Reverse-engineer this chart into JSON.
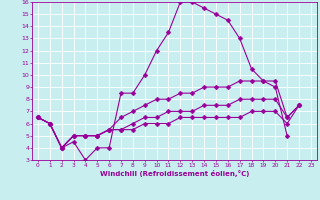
{
  "xlabel": "Windchill (Refroidissement éolien,°C)",
  "bg_color": "#c8eef0",
  "grid_color": "#ffffff",
  "line_color": "#990099",
  "marker": "D",
  "marker_size": 2.5,
  "xlim": [
    -0.5,
    23.5
  ],
  "ylim": [
    3,
    16
  ],
  "xticks": [
    0,
    1,
    2,
    3,
    4,
    5,
    6,
    7,
    8,
    9,
    10,
    11,
    12,
    13,
    14,
    15,
    16,
    17,
    18,
    19,
    20,
    21,
    22,
    23
  ],
  "yticks": [
    3,
    4,
    5,
    6,
    7,
    8,
    9,
    10,
    11,
    12,
    13,
    14,
    15,
    16
  ],
  "line1_x": [
    0,
    1,
    2,
    3,
    4,
    5,
    6,
    7,
    8,
    9,
    10,
    11,
    12,
    13,
    14,
    15,
    16,
    17,
    18,
    19,
    20,
    21,
    22,
    23
  ],
  "line1_y": [
    6.5,
    6.0,
    4.0,
    4.5,
    3.0,
    4.0,
    4.0,
    8.5,
    8.5,
    10.0,
    12.0,
    13.5,
    16.0,
    16.0,
    15.5,
    15.0,
    14.5,
    13.0,
    10.5,
    9.5,
    9.0,
    5.0,
    null,
    null
  ],
  "line2_x": [
    0,
    1,
    2,
    3,
    4,
    5,
    6,
    7,
    8,
    9,
    10,
    11,
    12,
    13,
    14,
    15,
    16,
    17,
    18,
    19,
    20,
    21,
    22,
    23
  ],
  "line2_y": [
    6.5,
    6.0,
    4.0,
    5.0,
    5.0,
    5.0,
    5.5,
    6.5,
    7.0,
    7.5,
    8.0,
    8.0,
    8.5,
    8.5,
    9.0,
    9.0,
    9.0,
    9.5,
    9.5,
    9.5,
    9.5,
    6.5,
    7.5,
    null
  ],
  "line3_x": [
    0,
    1,
    2,
    3,
    4,
    5,
    6,
    7,
    8,
    9,
    10,
    11,
    12,
    13,
    14,
    15,
    16,
    17,
    18,
    19,
    20,
    21,
    22,
    23
  ],
  "line3_y": [
    6.5,
    6.0,
    4.0,
    5.0,
    5.0,
    5.0,
    5.5,
    5.5,
    6.0,
    6.5,
    6.5,
    7.0,
    7.0,
    7.0,
    7.5,
    7.5,
    7.5,
    8.0,
    8.0,
    8.0,
    8.0,
    6.5,
    7.5,
    null
  ],
  "line4_x": [
    0,
    1,
    2,
    3,
    4,
    5,
    6,
    7,
    8,
    9,
    10,
    11,
    12,
    13,
    14,
    15,
    16,
    17,
    18,
    19,
    20,
    21,
    22,
    23
  ],
  "line4_y": [
    6.5,
    6.0,
    4.0,
    5.0,
    5.0,
    5.0,
    5.5,
    5.5,
    5.5,
    6.0,
    6.0,
    6.0,
    6.5,
    6.5,
    6.5,
    6.5,
    6.5,
    6.5,
    7.0,
    7.0,
    7.0,
    6.0,
    7.5,
    null
  ]
}
